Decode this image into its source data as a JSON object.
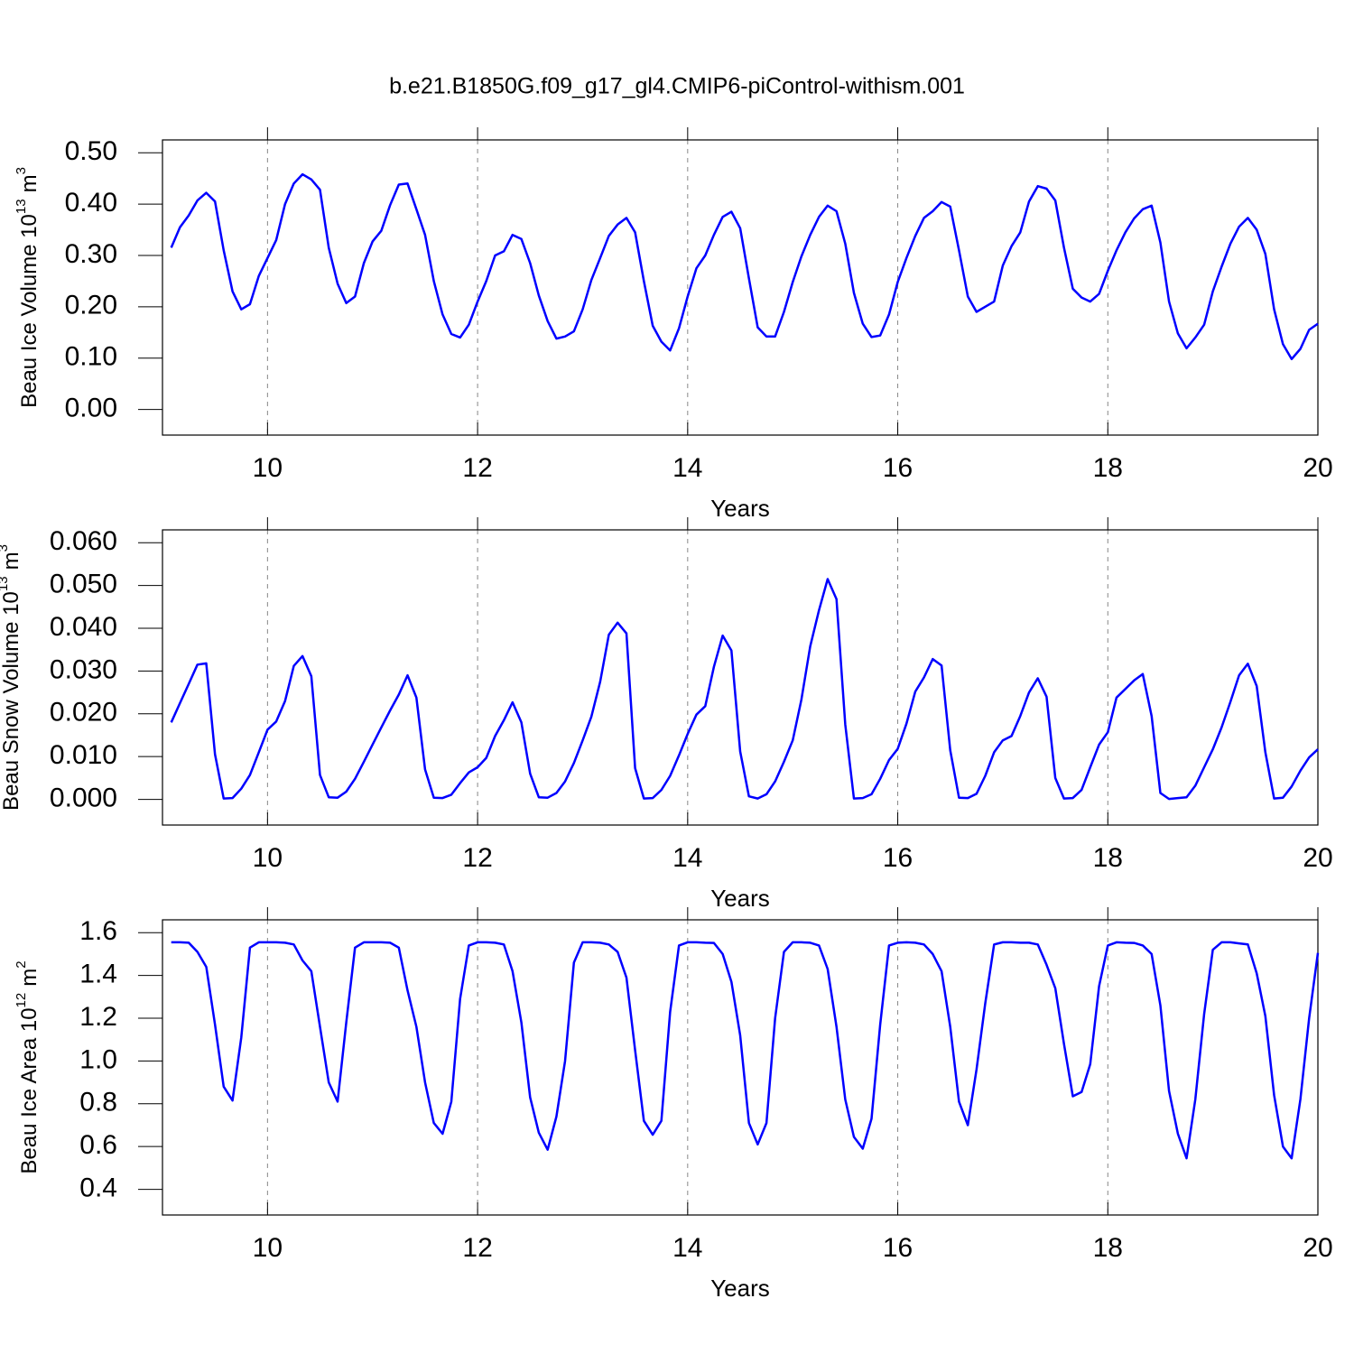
{
  "title": "b.e21.B1850G.f09_g17_gl4.CMIP6-piControl-withism.001",
  "chart_data": [
    {
      "type": "line",
      "ylabel": "Beau Ice Volume 10",
      "ylabel_exp": "13",
      "ylabel_unit": "m",
      "ylabel_unit_exp": "3",
      "xlabel": "Years",
      "color": "#0000ff",
      "xgrid": true,
      "xlim": [
        9,
        20
      ],
      "xticks": [
        10,
        12,
        14,
        16,
        18,
        20
      ],
      "ylim": [
        -0.05,
        0.525
      ],
      "yticks": [
        {
          "value": 0,
          "label": "0.00"
        },
        {
          "value": 0.1,
          "label": "0.10"
        },
        {
          "value": 0.2,
          "label": "0.20"
        },
        {
          "value": 0.3,
          "label": "0.30"
        },
        {
          "value": 0.4,
          "label": "0.40"
        },
        {
          "value": 0.5,
          "label": "0.50"
        }
      ],
      "x": [
        9.083,
        9.167,
        9.25,
        9.333,
        9.417,
        9.5,
        9.583,
        9.667,
        9.75,
        9.833,
        9.917,
        10,
        10.083,
        10.167,
        10.25,
        10.333,
        10.417,
        10.5,
        10.583,
        10.667,
        10.75,
        10.833,
        10.917,
        11,
        11.083,
        11.167,
        11.25,
        11.333,
        11.417,
        11.5,
        11.583,
        11.667,
        11.75,
        11.833,
        11.917,
        12,
        12.083,
        12.167,
        12.25,
        12.333,
        12.417,
        12.5,
        12.583,
        12.667,
        12.75,
        12.833,
        12.917,
        13,
        13.083,
        13.167,
        13.25,
        13.333,
        13.417,
        13.5,
        13.583,
        13.667,
        13.75,
        13.833,
        13.917,
        14,
        14.083,
        14.167,
        14.25,
        14.333,
        14.417,
        14.5,
        14.583,
        14.667,
        14.75,
        14.833,
        14.917,
        15,
        15.083,
        15.167,
        15.25,
        15.333,
        15.417,
        15.5,
        15.583,
        15.667,
        15.75,
        15.833,
        15.917,
        16,
        16.083,
        16.167,
        16.25,
        16.333,
        16.417,
        16.5,
        16.583,
        16.667,
        16.75,
        16.833,
        16.917,
        17,
        17.083,
        17.167,
        17.25,
        17.333,
        17.417,
        17.5,
        17.583,
        17.667,
        17.75,
        17.833,
        17.917,
        18,
        18.083,
        18.167,
        18.25,
        18.333,
        18.417,
        18.5,
        18.583,
        18.667,
        18.75,
        18.833,
        18.917,
        19,
        19.083,
        19.167,
        19.25,
        19.333,
        19.417,
        19.5,
        19.583,
        19.667,
        19.75,
        19.833,
        19.917,
        20
      ],
      "values": [
        0.315,
        0.355,
        0.378,
        0.407,
        0.422,
        0.405,
        0.31,
        0.23,
        0.195,
        0.205,
        0.26,
        0.295,
        0.33,
        0.4,
        0.44,
        0.458,
        0.448,
        0.428,
        0.315,
        0.245,
        0.207,
        0.22,
        0.285,
        0.327,
        0.348,
        0.398,
        0.438,
        0.44,
        0.39,
        0.34,
        0.25,
        0.185,
        0.147,
        0.14,
        0.165,
        0.21,
        0.25,
        0.3,
        0.308,
        0.34,
        0.332,
        0.285,
        0.222,
        0.172,
        0.138,
        0.142,
        0.152,
        0.195,
        0.252,
        0.295,
        0.338,
        0.36,
        0.373,
        0.345,
        0.25,
        0.163,
        0.132,
        0.115,
        0.158,
        0.22,
        0.275,
        0.3,
        0.34,
        0.375,
        0.385,
        0.353,
        0.255,
        0.16,
        0.142,
        0.142,
        0.19,
        0.248,
        0.298,
        0.34,
        0.375,
        0.397,
        0.386,
        0.323,
        0.227,
        0.167,
        0.141,
        0.144,
        0.185,
        0.248,
        0.295,
        0.338,
        0.373,
        0.386,
        0.404,
        0.395,
        0.31,
        0.22,
        0.19,
        0.2,
        0.21,
        0.28,
        0.318,
        0.345,
        0.405,
        0.435,
        0.43,
        0.407,
        0.315,
        0.235,
        0.218,
        0.21,
        0.225,
        0.27,
        0.31,
        0.345,
        0.372,
        0.39,
        0.397,
        0.325,
        0.21,
        0.148,
        0.119,
        0.14,
        0.165,
        0.23,
        0.278,
        0.323,
        0.356,
        0.373,
        0.35,
        0.303,
        0.195,
        0.127,
        0.098,
        0.118,
        0.155,
        0.167
      ]
    },
    {
      "type": "line",
      "ylabel": "Beau Snow Volume 10",
      "ylabel_exp": "13",
      "ylabel_unit": "m",
      "ylabel_unit_exp": "3",
      "xlabel": "Years",
      "color": "#0000ff",
      "xgrid": true,
      "xlim": [
        9,
        20
      ],
      "xticks": [
        10,
        12,
        14,
        16,
        18,
        20
      ],
      "ylim": [
        -0.006,
        0.063
      ],
      "yticks": [
        {
          "value": 0,
          "label": "0.000"
        },
        {
          "value": 0.01,
          "label": "0.010"
        },
        {
          "value": 0.02,
          "label": "0.020"
        },
        {
          "value": 0.03,
          "label": "0.030"
        },
        {
          "value": 0.04,
          "label": "0.040"
        },
        {
          "value": 0.05,
          "label": "0.050"
        },
        {
          "value": 0.06,
          "label": "0.060"
        }
      ],
      "x": [
        9.083,
        9.167,
        9.25,
        9.333,
        9.417,
        9.5,
        9.583,
        9.667,
        9.75,
        9.833,
        9.917,
        10,
        10.083,
        10.167,
        10.25,
        10.333,
        10.417,
        10.5,
        10.583,
        10.667,
        10.75,
        10.833,
        10.917,
        11,
        11.083,
        11.167,
        11.25,
        11.333,
        11.417,
        11.5,
        11.583,
        11.667,
        11.75,
        11.833,
        11.917,
        12,
        12.083,
        12.167,
        12.25,
        12.333,
        12.417,
        12.5,
        12.583,
        12.667,
        12.75,
        12.833,
        12.917,
        13,
        13.083,
        13.167,
        13.25,
        13.333,
        13.417,
        13.5,
        13.583,
        13.667,
        13.75,
        13.833,
        13.917,
        14,
        14.083,
        14.167,
        14.25,
        14.333,
        14.417,
        14.5,
        14.583,
        14.667,
        14.75,
        14.833,
        14.917,
        15,
        15.083,
        15.167,
        15.25,
        15.333,
        15.417,
        15.5,
        15.583,
        15.667,
        15.75,
        15.833,
        15.917,
        16,
        16.083,
        16.167,
        16.25,
        16.333,
        16.417,
        16.5,
        16.583,
        16.667,
        16.75,
        16.833,
        16.917,
        17,
        17.083,
        17.167,
        17.25,
        17.333,
        17.417,
        17.5,
        17.583,
        17.667,
        17.75,
        17.833,
        17.917,
        18,
        18.083,
        18.167,
        18.25,
        18.333,
        18.417,
        18.5,
        18.583,
        18.667,
        18.75,
        18.833,
        18.917,
        19,
        19.083,
        19.167,
        19.25,
        19.333,
        19.417,
        19.5,
        19.583,
        19.667,
        19.75,
        19.833,
        19.917,
        20
      ],
      "values": [
        0.018,
        0.0225,
        0.027,
        0.0315,
        0.0318,
        0.0105,
        0.0002,
        0.0003,
        0.0025,
        0.0057,
        0.011,
        0.0163,
        0.0182,
        0.023,
        0.0312,
        0.0335,
        0.0288,
        0.0057,
        0.0005,
        0.0004,
        0.0018,
        0.0048,
        0.0088,
        0.0128,
        0.0168,
        0.0208,
        0.0245,
        0.029,
        0.0238,
        0.007,
        0.0004,
        0.0003,
        0.0011,
        0.0038,
        0.0063,
        0.0075,
        0.0097,
        0.0148,
        0.0185,
        0.0227,
        0.018,
        0.006,
        0.0005,
        0.0004,
        0.0015,
        0.0042,
        0.0085,
        0.0138,
        0.0193,
        0.0275,
        0.0385,
        0.0413,
        0.0388,
        0.0073,
        0.0002,
        0.0003,
        0.0022,
        0.0055,
        0.0103,
        0.0153,
        0.0198,
        0.0218,
        0.031,
        0.0383,
        0.0348,
        0.0112,
        0.0007,
        0.0002,
        0.0012,
        0.0042,
        0.0088,
        0.0138,
        0.0233,
        0.0358,
        0.0442,
        0.0515,
        0.0468,
        0.0175,
        0.0002,
        0.0003,
        0.0012,
        0.0048,
        0.0092,
        0.0118,
        0.0177,
        0.0252,
        0.0285,
        0.0328,
        0.0313,
        0.0115,
        0.0004,
        0.0003,
        0.0013,
        0.0055,
        0.011,
        0.0138,
        0.0148,
        0.0195,
        0.025,
        0.0283,
        0.024,
        0.005,
        0.0002,
        0.0003,
        0.0022,
        0.0075,
        0.0128,
        0.0157,
        0.0238,
        0.0258,
        0.0278,
        0.0293,
        0.0195,
        0.0015,
        0.0001,
        0.0003,
        0.0005,
        0.0032,
        0.0075,
        0.0117,
        0.0168,
        0.0228,
        0.029,
        0.0317,
        0.0265,
        0.011,
        0.0002,
        0.0004,
        0.003,
        0.0067,
        0.0098,
        0.0117
      ]
    },
    {
      "type": "line",
      "ylabel": "Beau Ice Area 10",
      "ylabel_exp": "12",
      "ylabel_unit": "m",
      "ylabel_unit_exp": "2",
      "xlabel": "Years",
      "color": "#0000ff",
      "xgrid": true,
      "xlim": [
        9,
        20
      ],
      "xticks": [
        10,
        12,
        14,
        16,
        18,
        20
      ],
      "ylim": [
        0.28,
        1.66
      ],
      "yticks": [
        0.4,
        0.6,
        0.8,
        {
          "value": 1,
          "label": "1.0"
        },
        1.2,
        1.4,
        1.6
      ],
      "x": [
        9.083,
        9.167,
        9.25,
        9.333,
        9.417,
        9.5,
        9.583,
        9.667,
        9.75,
        9.833,
        9.917,
        10,
        10.083,
        10.167,
        10.25,
        10.333,
        10.417,
        10.5,
        10.583,
        10.667,
        10.75,
        10.833,
        10.917,
        11,
        11.083,
        11.167,
        11.25,
        11.333,
        11.417,
        11.5,
        11.583,
        11.667,
        11.75,
        11.833,
        11.917,
        12,
        12.083,
        12.167,
        12.25,
        12.333,
        12.417,
        12.5,
        12.583,
        12.667,
        12.75,
        12.833,
        12.917,
        13,
        13.083,
        13.167,
        13.25,
        13.333,
        13.417,
        13.5,
        13.583,
        13.667,
        13.75,
        13.833,
        13.917,
        14,
        14.083,
        14.167,
        14.25,
        14.333,
        14.417,
        14.5,
        14.583,
        14.667,
        14.75,
        14.833,
        14.917,
        15,
        15.083,
        15.167,
        15.25,
        15.333,
        15.417,
        15.5,
        15.583,
        15.667,
        15.75,
        15.833,
        15.917,
        16,
        16.083,
        16.167,
        16.25,
        16.333,
        16.417,
        16.5,
        16.583,
        16.667,
        16.75,
        16.833,
        16.917,
        17,
        17.083,
        17.167,
        17.25,
        17.333,
        17.417,
        17.5,
        17.583,
        17.667,
        17.75,
        17.833,
        17.917,
        18,
        18.083,
        18.167,
        18.25,
        18.333,
        18.417,
        18.5,
        18.583,
        18.667,
        18.75,
        18.833,
        18.917,
        19,
        19.083,
        19.167,
        19.25,
        19.333,
        19.417,
        19.5,
        19.583,
        19.667,
        19.75,
        19.833,
        19.917,
        20
      ],
      "values": [
        1.555,
        1.555,
        1.553,
        1.51,
        1.44,
        1.17,
        0.88,
        0.815,
        1.11,
        1.53,
        1.555,
        1.555,
        1.555,
        1.553,
        1.545,
        1.47,
        1.42,
        1.16,
        0.9,
        0.81,
        1.18,
        1.53,
        1.555,
        1.555,
        1.555,
        1.553,
        1.53,
        1.33,
        1.16,
        0.9,
        0.71,
        0.66,
        0.81,
        1.29,
        1.54,
        1.555,
        1.555,
        1.553,
        1.545,
        1.42,
        1.18,
        0.83,
        0.665,
        0.585,
        0.74,
        1.0,
        1.46,
        1.555,
        1.555,
        1.553,
        1.545,
        1.51,
        1.39,
        1.05,
        0.72,
        0.655,
        0.72,
        1.23,
        1.54,
        1.555,
        1.555,
        1.553,
        1.552,
        1.5,
        1.37,
        1.12,
        0.71,
        0.61,
        0.71,
        1.2,
        1.51,
        1.555,
        1.555,
        1.553,
        1.54,
        1.43,
        1.16,
        0.82,
        0.645,
        0.59,
        0.73,
        1.17,
        1.54,
        1.553,
        1.555,
        1.553,
        1.545,
        1.5,
        1.42,
        1.16,
        0.81,
        0.7,
        0.96,
        1.27,
        1.545,
        1.555,
        1.555,
        1.553,
        1.553,
        1.545,
        1.45,
        1.34,
        1.08,
        0.835,
        0.855,
        0.985,
        1.35,
        1.54,
        1.555,
        1.553,
        1.552,
        1.54,
        1.5,
        1.26,
        0.86,
        0.66,
        0.545,
        0.82,
        1.22,
        1.52,
        1.555,
        1.555,
        1.55,
        1.545,
        1.41,
        1.21,
        0.84,
        0.6,
        0.545,
        0.82,
        1.2,
        1.505
      ]
    }
  ]
}
